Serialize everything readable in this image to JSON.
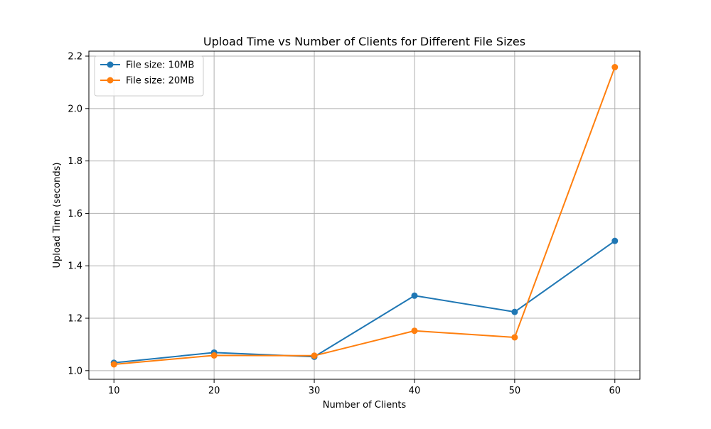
{
  "chart_data": {
    "type": "line",
    "title": "Upload Time vs Number of Clients for Different File Sizes",
    "xlabel": "Number of Clients",
    "ylabel": "Upload Time (seconds)",
    "x": [
      10,
      20,
      30,
      40,
      50,
      60
    ],
    "xlim": [
      7.5,
      62.5
    ],
    "ylim": [
      0.967,
      2.219
    ],
    "xticks": [
      10,
      20,
      30,
      40,
      50,
      60
    ],
    "xtick_labels": [
      "10",
      "20",
      "30",
      "40",
      "50",
      "60"
    ],
    "yticks": [
      1.0,
      1.2,
      1.4,
      1.6,
      1.8,
      2.0,
      2.2
    ],
    "ytick_labels": [
      "1.0",
      "1.2",
      "1.4",
      "1.6",
      "1.8",
      "2.0",
      "2.2"
    ],
    "grid": true,
    "legend_position": "top-left",
    "series": [
      {
        "name": "File size: 10MB",
        "color": "#1f77b4",
        "marker": "circle",
        "values": [
          1.03,
          1.069,
          1.053,
          1.286,
          1.224,
          1.495
        ]
      },
      {
        "name": "File size: 20MB",
        "color": "#ff7f0e",
        "marker": "circle",
        "values": [
          1.024,
          1.058,
          1.057,
          1.152,
          1.127,
          2.158
        ]
      }
    ]
  }
}
